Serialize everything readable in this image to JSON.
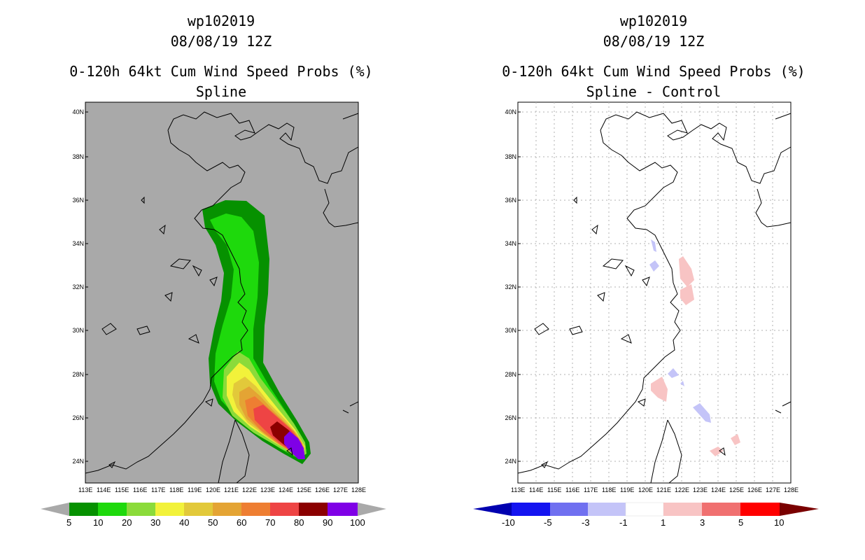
{
  "colors": {
    "land_bg": "#a9a9a9",
    "coast": "#000000",
    "grid": "#b0b0b0",
    "prob_bins": [
      "#069100",
      "#1ed90c",
      "#8bdb3a",
      "#f2f23a",
      "#e2c93a",
      "#e4a434",
      "#ee7e32",
      "#ee4444",
      "#8b0000",
      "#7f00e6"
    ],
    "diff_bins": [
      "#0000b0",
      "#1414f0",
      "#7070f0",
      "#c4c4f8",
      "#ffffff",
      "#f8c4c4",
      "#f07070",
      "#ff0000",
      "#7a0000"
    ]
  },
  "left_panel": {
    "title": {
      "line1": "wp102019",
      "line2": "08/08/19 12Z",
      "line3": "0-120h 64kt Cum Wind Speed Probs (%)",
      "line4": "Spline"
    },
    "colorbar_labels": [
      "5",
      "10",
      "20",
      "30",
      "40",
      "50",
      "60",
      "70",
      "80",
      "90",
      "100"
    ]
  },
  "right_panel": {
    "title": {
      "line1": "wp102019",
      "line2": "08/08/19 12Z",
      "line3": "0-120h 64kt Cum Wind Speed Probs (%)",
      "line4": "Spline - Control"
    },
    "colorbar_labels": [
      "-10",
      "-5",
      "-3",
      "-1",
      "1",
      "3",
      "5",
      "10"
    ]
  },
  "axes": {
    "lon_labels": [
      "113E",
      "114E",
      "115E",
      "116E",
      "117E",
      "118E",
      "119E",
      "120E",
      "121E",
      "122E",
      "123E",
      "124E",
      "125E",
      "126E",
      "127E",
      "128E"
    ],
    "lat_labels": [
      "24N",
      "26N",
      "28N",
      "30N",
      "32N",
      "34N",
      "36N",
      "38N",
      "40N"
    ]
  }
}
